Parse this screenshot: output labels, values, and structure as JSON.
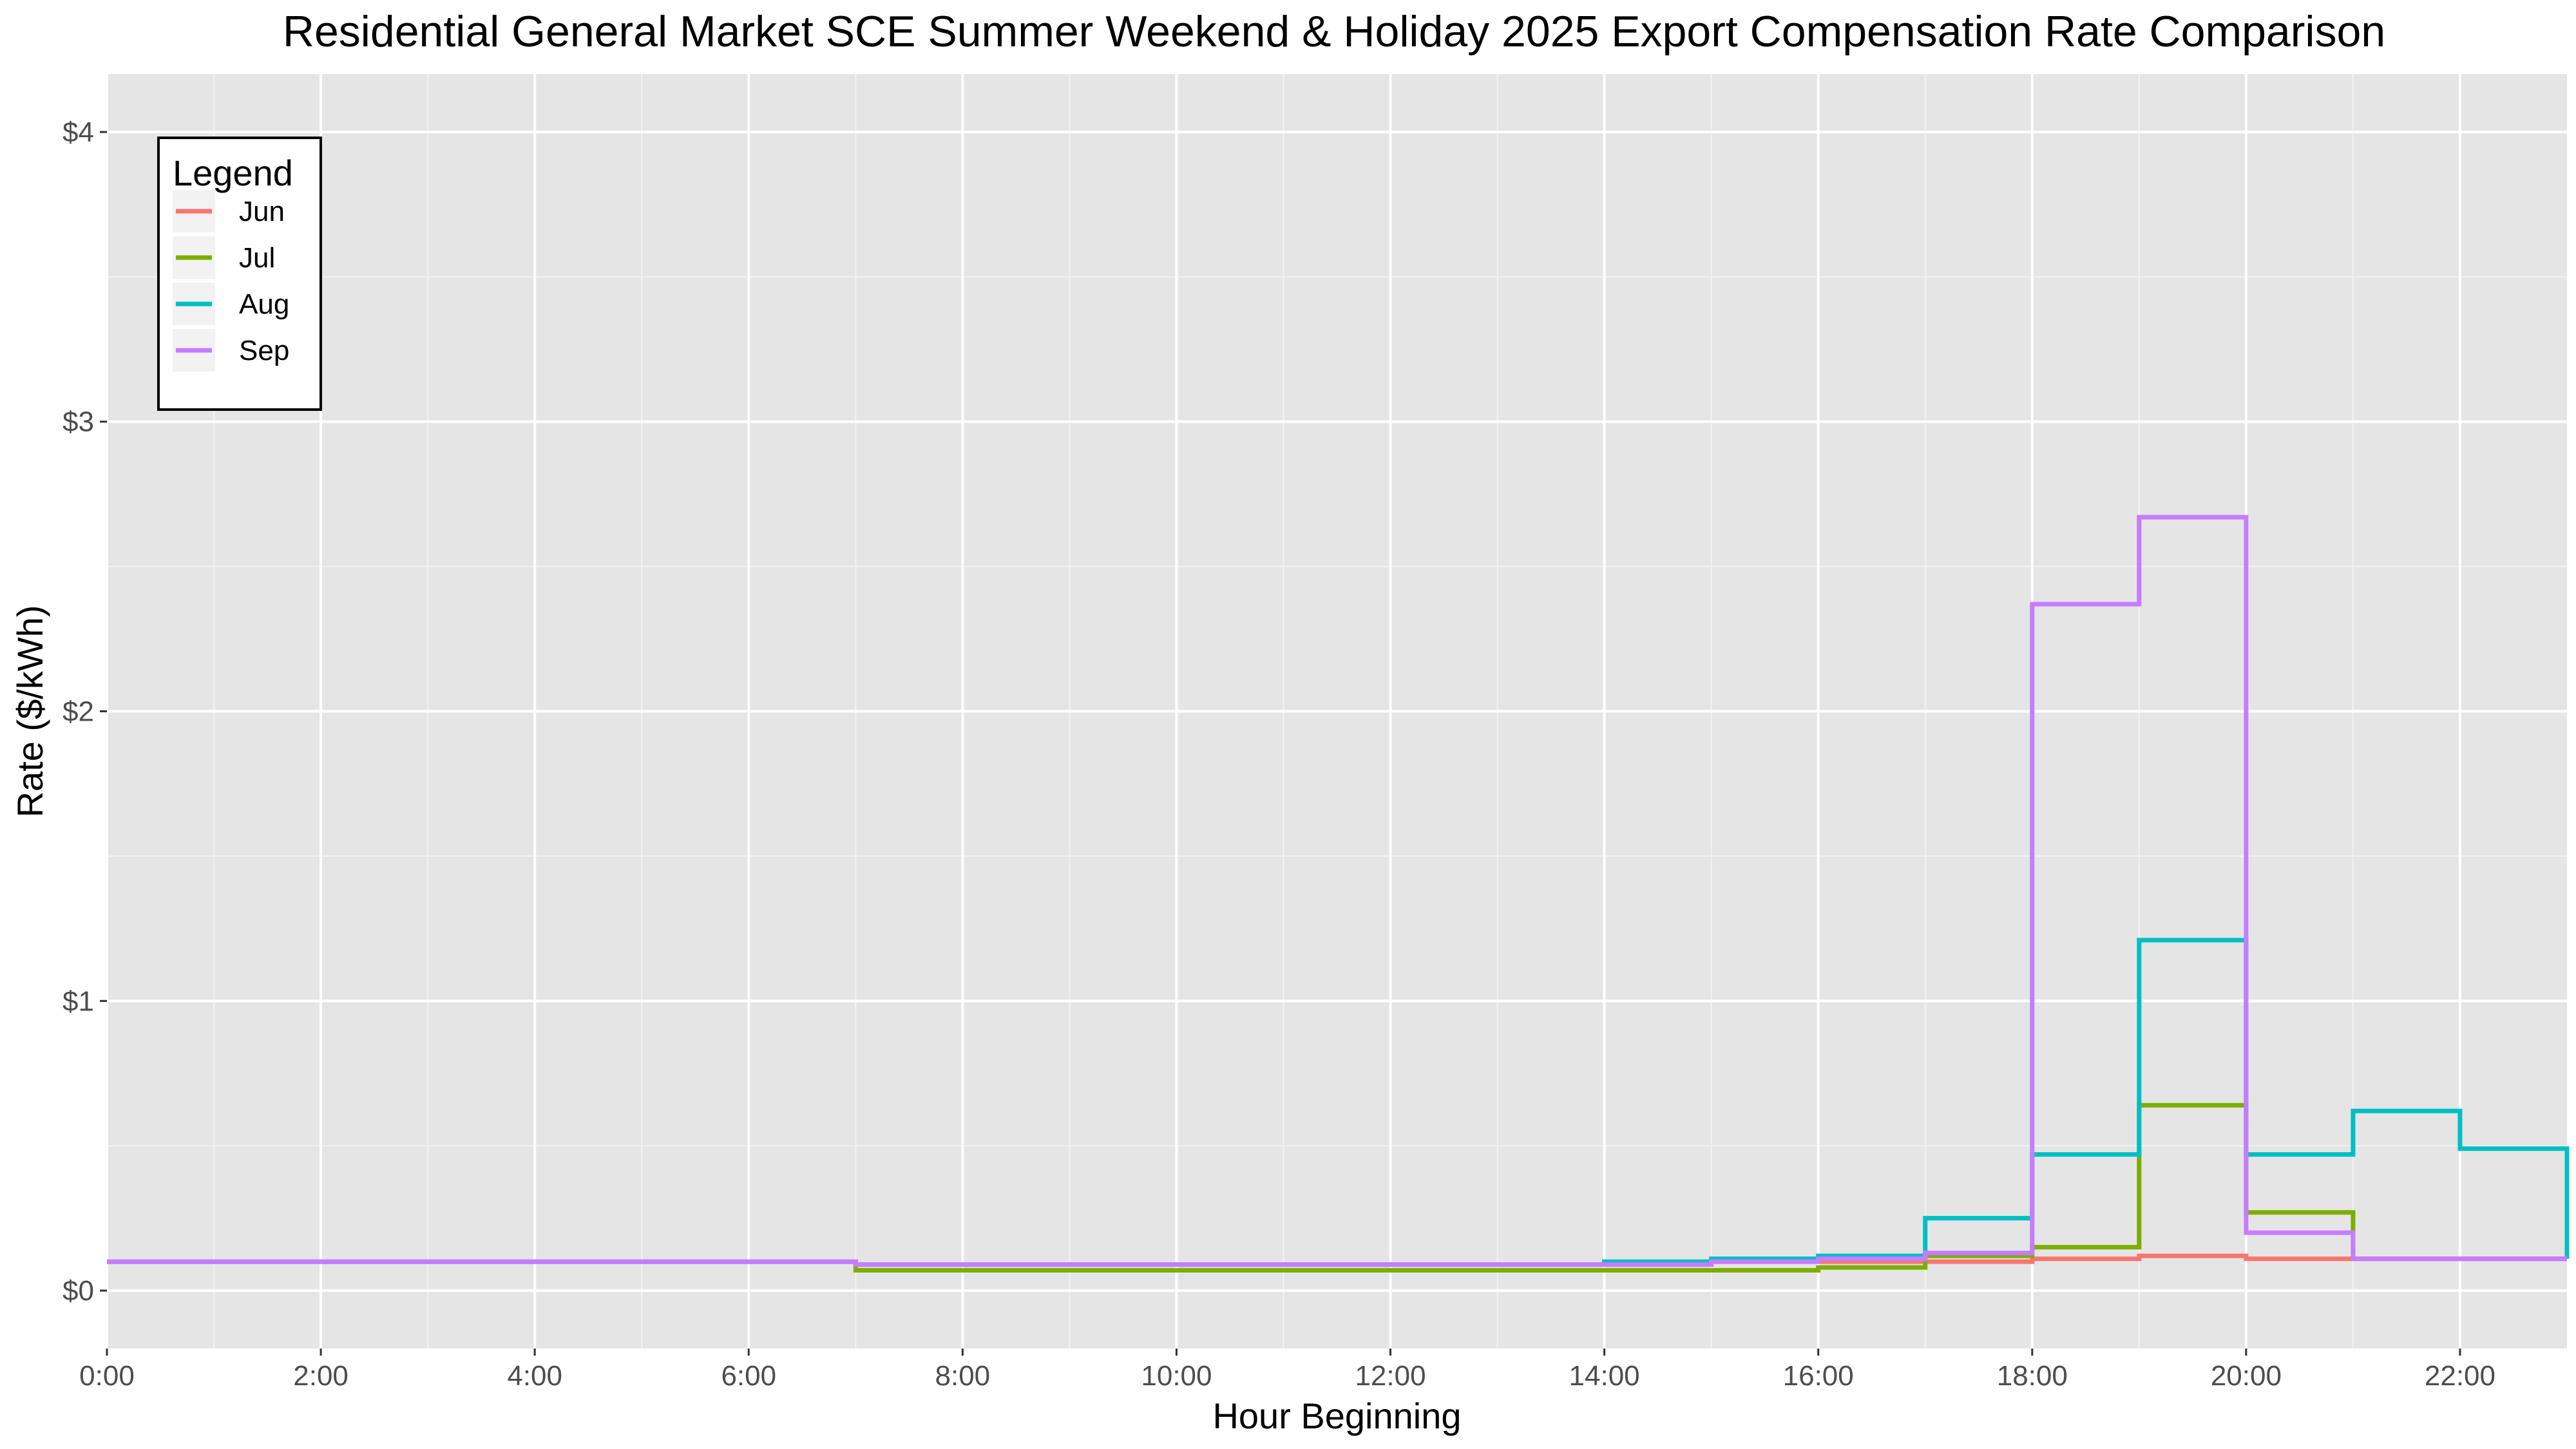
{
  "chart_data": {
    "type": "line",
    "step": true,
    "title": "Residential General Market SCE Summer Weekend & Holiday 2025 Export Compensation Rate Comparison",
    "xlabel": "Hour Beginning",
    "ylabel": "Rate ($/kWh)",
    "x_ticks": [
      "0:00",
      "2:00",
      "4:00",
      "6:00",
      "8:00",
      "10:00",
      "12:00",
      "14:00",
      "16:00",
      "18:00",
      "20:00",
      "22:00"
    ],
    "y_ticks": [
      "$0",
      "$1",
      "$2",
      "$3",
      "$4"
    ],
    "xlim": [
      0,
      23
    ],
    "ylim": [
      -0.2,
      4.2
    ],
    "x": [
      0,
      1,
      2,
      3,
      4,
      5,
      6,
      7,
      8,
      9,
      10,
      11,
      12,
      13,
      14,
      15,
      16,
      17,
      18,
      19,
      20,
      21,
      22,
      23
    ],
    "legend": {
      "title": "Legend",
      "position": "top-left inside"
    },
    "grid": true,
    "background": "#e5e5e5",
    "series": [
      {
        "name": "Jun",
        "color": "#f8766d",
        "values": [
          0.1,
          0.1,
          0.1,
          0.1,
          0.1,
          0.1,
          0.1,
          0.09,
          0.09,
          0.09,
          0.09,
          0.09,
          0.09,
          0.09,
          0.09,
          0.1,
          0.1,
          0.1,
          0.11,
          0.12,
          0.11,
          0.11,
          0.11,
          0.11
        ]
      },
      {
        "name": "Jul",
        "color": "#7cae00",
        "values": [
          0.1,
          0.1,
          0.1,
          0.1,
          0.1,
          0.1,
          0.1,
          0.07,
          0.07,
          0.07,
          0.07,
          0.07,
          0.07,
          0.07,
          0.07,
          0.07,
          0.08,
          0.12,
          0.15,
          0.64,
          0.27,
          0.11,
          0.11,
          0.11
        ]
      },
      {
        "name": "Aug",
        "color": "#00bfc4",
        "values": [
          0.1,
          0.1,
          0.1,
          0.1,
          0.1,
          0.1,
          0.1,
          0.09,
          0.09,
          0.09,
          0.09,
          0.09,
          0.09,
          0.09,
          0.1,
          0.11,
          0.12,
          0.25,
          0.47,
          1.21,
          0.47,
          0.62,
          0.49,
          0.11
        ]
      },
      {
        "name": "Sep",
        "color": "#c77cff",
        "values": [
          0.1,
          0.1,
          0.1,
          0.1,
          0.1,
          0.1,
          0.1,
          0.09,
          0.09,
          0.09,
          0.09,
          0.09,
          0.09,
          0.09,
          0.09,
          0.1,
          0.11,
          0.13,
          2.37,
          2.67,
          0.2,
          0.11,
          0.11,
          0.11
        ]
      }
    ]
  }
}
